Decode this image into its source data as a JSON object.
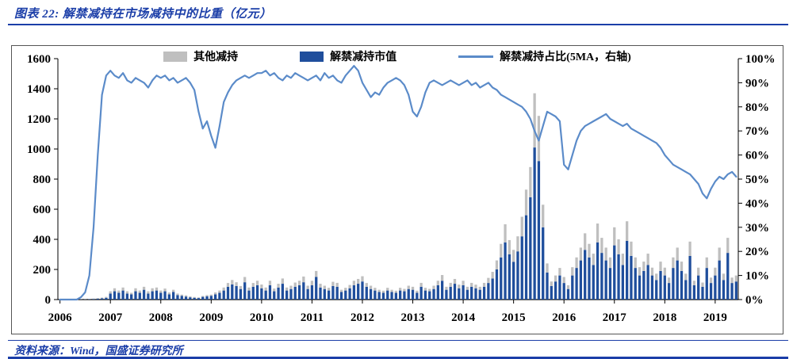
{
  "title": "图表 22: 解禁减持在市场减持中的比重（亿元）",
  "source": "资料来源：Wind，国盛证券研究所",
  "colors": {
    "accent": "#1B3EA8",
    "bar_gray": "#BFBFBF",
    "bar_blue": "#1F4E9C",
    "line_blue": "#5B8BC9"
  },
  "chart_data": {
    "type": "bar",
    "subtype": "stacked-bars-with-right-axis-line",
    "title": "解禁减持在市场减持中的比重（亿元）",
    "xlabel": "",
    "ylabel_left": "",
    "ylabel_right": "",
    "x_start": "2006-01",
    "x_freq": "monthly",
    "x_tick_labels": [
      "2006",
      "2007",
      "2008",
      "2009",
      "2010",
      "2011",
      "2012",
      "2013",
      "2014",
      "2015",
      "2016",
      "2017",
      "2018",
      "2019"
    ],
    "left_axis": {
      "min": 0,
      "max": 1600,
      "step": 200,
      "tick_labels": [
        "0",
        "200",
        "400",
        "600",
        "800",
        "1000",
        "1200",
        "1400",
        "1600"
      ]
    },
    "right_axis": {
      "min": 0,
      "max": 100,
      "step": 10,
      "tick_labels": [
        "0%",
        "10%",
        "20%",
        "30%",
        "40%",
        "50%",
        "60%",
        "70%",
        "80%",
        "90%",
        "100%"
      ]
    },
    "legend_position": "top",
    "grid": false,
    "series": [
      {
        "name": "其他减持",
        "type": "bar",
        "stack": "total",
        "color": "#BFBFBF",
        "values": [
          1,
          1,
          1,
          1,
          1,
          1,
          2,
          2,
          3,
          4,
          5,
          6,
          15,
          20,
          15,
          20,
          15,
          10,
          20,
          15,
          20,
          15,
          20,
          20,
          15,
          18,
          12,
          15,
          10,
          8,
          8,
          6,
          5,
          4,
          6,
          8,
          8,
          12,
          15,
          20,
          25,
          30,
          25,
          20,
          35,
          20,
          25,
          30,
          25,
          20,
          30,
          18,
          25,
          35,
          20,
          22,
          28,
          30,
          38,
          22,
          30,
          40,
          25,
          22,
          18,
          28,
          26,
          15,
          18,
          22,
          30,
          32,
          35,
          25,
          22,
          18,
          15,
          14,
          18,
          15,
          14,
          18,
          16,
          22,
          20,
          14,
          26,
          18,
          16,
          22,
          30,
          38,
          20,
          26,
          32,
          24,
          30,
          20,
          26,
          24,
          20,
          26,
          34,
          44,
          60,
          90,
          120,
          95,
          80,
          100,
          130,
          170,
          200,
          360,
          300,
          150,
          60,
          30,
          40,
          50,
          40,
          25,
          55,
          70,
          85,
          110,
          90,
          75,
          125,
          100,
          85,
          70,
          120,
          100,
          75,
          130,
          95,
          70,
          55,
          62,
          75,
          52,
          42,
          62,
          52,
          36,
          70,
          85,
          62,
          42,
          95,
          30,
          52,
          28,
          70,
          36,
          52,
          85,
          42,
          100,
          36,
          40
        ]
      },
      {
        "name": "解禁减持市值",
        "type": "bar",
        "stack": "total",
        "color": "#1F4E9C",
        "values": [
          1,
          1,
          1,
          1,
          1,
          2,
          2,
          3,
          4,
          6,
          8,
          12,
          40,
          55,
          45,
          60,
          40,
          35,
          55,
          45,
          65,
          40,
          55,
          60,
          45,
          55,
          35,
          50,
          30,
          25,
          20,
          15,
          12,
          10,
          18,
          22,
          25,
          35,
          45,
          60,
          85,
          100,
          90,
          70,
          115,
          60,
          85,
          95,
          75,
          60,
          95,
          55,
          80,
          105,
          60,
          70,
          85,
          95,
          115,
          70,
          95,
          150,
          80,
          70,
          60,
          90,
          85,
          50,
          60,
          75,
          95,
          105,
          120,
          85,
          70,
          60,
          50,
          45,
          60,
          50,
          45,
          60,
          55,
          70,
          65,
          45,
          85,
          60,
          55,
          70,
          95,
          125,
          65,
          85,
          105,
          75,
          95,
          65,
          85,
          75,
          65,
          85,
          110,
          140,
          200,
          280,
          380,
          300,
          250,
          320,
          420,
          560,
          680,
          1010,
          920,
          480,
          180,
          90,
          120,
          160,
          110,
          70,
          160,
          210,
          260,
          330,
          280,
          230,
          380,
          310,
          260,
          210,
          360,
          300,
          230,
          390,
          290,
          210,
          160,
          190,
          230,
          160,
          130,
          190,
          160,
          110,
          210,
          260,
          190,
          130,
          290,
          95,
          160,
          85,
          210,
          110,
          160,
          260,
          130,
          310,
          110,
          120
        ]
      },
      {
        "name": "解禁减持占比(5MA，右轴)",
        "type": "line",
        "axis": "right",
        "unit": "%",
        "color": "#5B8BC9",
        "values": [
          0,
          0,
          0,
          0,
          0,
          1,
          3,
          10,
          30,
          60,
          85,
          93,
          95,
          93,
          92,
          94,
          91,
          90,
          92,
          91,
          90,
          88,
          91,
          93,
          92,
          93,
          91,
          92,
          90,
          91,
          92,
          90,
          87,
          78,
          71,
          74,
          68,
          63,
          72,
          82,
          86,
          89,
          91,
          92,
          93,
          92,
          93,
          94,
          94,
          95,
          93,
          94,
          92,
          91,
          93,
          92,
          94,
          93,
          92,
          91,
          92,
          93,
          91,
          94,
          92,
          93,
          91,
          90,
          93,
          95,
          97,
          95,
          90,
          87,
          84,
          86,
          85,
          88,
          90,
          91,
          92,
          91,
          89,
          85,
          78,
          76,
          80,
          86,
          90,
          91,
          90,
          89,
          90,
          91,
          90,
          89,
          90,
          91,
          89,
          90,
          88,
          89,
          90,
          88,
          87,
          85,
          84,
          83,
          82,
          81,
          80,
          78,
          75,
          70,
          66,
          72,
          78,
          77,
          76,
          74,
          56,
          54,
          60,
          66,
          70,
          72,
          73,
          74,
          75,
          76,
          77,
          75,
          74,
          73,
          72,
          73,
          71,
          70,
          69,
          68,
          67,
          66,
          65,
          63,
          60,
          58,
          56,
          55,
          54,
          53,
          52,
          50,
          48,
          44,
          42,
          46,
          49,
          51,
          50,
          52,
          53,
          51
        ]
      }
    ]
  }
}
